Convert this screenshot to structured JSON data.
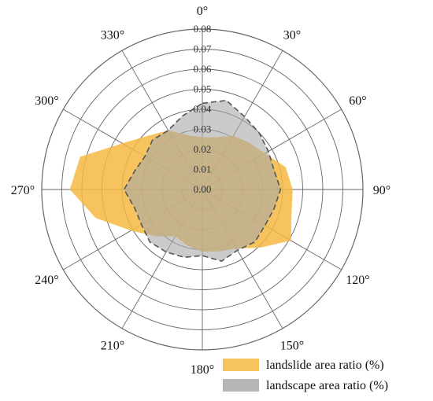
{
  "chart_data": {
    "type": "radar",
    "title": "",
    "angle_unit": "°",
    "angles": [
      0,
      15,
      30,
      45,
      60,
      75,
      90,
      105,
      120,
      135,
      150,
      165,
      180,
      195,
      210,
      225,
      240,
      255,
      270,
      285,
      300,
      315,
      330,
      345
    ],
    "angle_labels": [
      "0°",
      "30°",
      "60°",
      "90°",
      "120°",
      "150°",
      "180°",
      "210°",
      "240°",
      "270°",
      "300°",
      "330°"
    ],
    "label_angles": [
      0,
      30,
      60,
      90,
      120,
      150,
      180,
      210,
      240,
      270,
      300,
      330
    ],
    "radial_ticks": [
      "0.00",
      "0.01",
      "0.02",
      "0.03",
      "0.04",
      "0.05",
      "0.06",
      "0.07",
      "0.08"
    ],
    "radial_tick_values": [
      0,
      0.01,
      0.02,
      0.03,
      0.04,
      0.05,
      0.06,
      0.07,
      0.08
    ],
    "rlim": [
      0,
      0.08
    ],
    "grid": true,
    "legend_position": "bottom-right",
    "series": [
      {
        "name": "landslide area ratio (%)",
        "color": "#f5b942",
        "values": [
          0.026,
          0.027,
          0.031,
          0.033,
          0.036,
          0.043,
          0.045,
          0.046,
          0.051,
          0.041,
          0.034,
          0.032,
          0.031,
          0.029,
          0.027,
          0.033,
          0.041,
          0.055,
          0.066,
          0.063,
          0.046,
          0.038,
          0.034,
          0.028
        ]
      },
      {
        "name": "landscape area ratio (%)",
        "color": "#a9a9a9",
        "values": [
          0.043,
          0.046,
          0.042,
          0.04,
          0.038,
          0.037,
          0.039,
          0.037,
          0.036,
          0.037,
          0.035,
          0.037,
          0.033,
          0.035,
          0.036,
          0.037,
          0.035,
          0.035,
          0.039,
          0.035,
          0.033,
          0.035,
          0.034,
          0.038
        ]
      }
    ]
  }
}
